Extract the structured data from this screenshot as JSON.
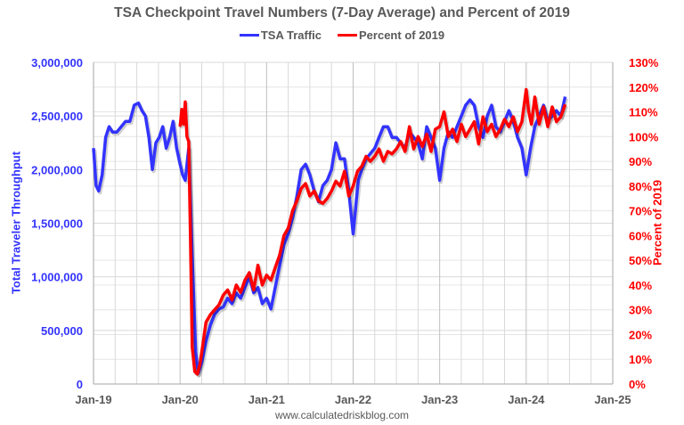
{
  "chart_data": {
    "type": "line",
    "title": "TSA Checkpoint Travel Numbers (7-Day Average) and Percent of 2019",
    "xlabel": "",
    "ylabel": "Total Traveler Throughput",
    "y2label": "Percent of 2019",
    "source": "www.calculatedriskblog.com",
    "x_tick_labels": [
      "Jan-19",
      "Jan-20",
      "Jan-21",
      "Jan-22",
      "Jan-23",
      "Jan-24",
      "Jan-25"
    ],
    "y_tick_labels": [
      "0",
      "500,000",
      "1,000,000",
      "1,500,000",
      "2,000,000",
      "2,500,000",
      "3,000,000"
    ],
    "y2_tick_labels": [
      "0%",
      "10%",
      "20%",
      "30%",
      "40%",
      "50%",
      "60%",
      "70%",
      "80%",
      "90%",
      "100%",
      "110%",
      "120%",
      "130%"
    ],
    "ylim": [
      0,
      3000000
    ],
    "y2lim": [
      0,
      130
    ],
    "xlim": [
      2019.0,
      2025.0
    ],
    "grid": true,
    "legend_position": "top",
    "series": [
      {
        "name": "TSA Traffic",
        "color": "#3333ff",
        "axis": "left",
        "x": [
          2019.0,
          2019.03,
          2019.06,
          2019.1,
          2019.14,
          2019.18,
          2019.22,
          2019.27,
          2019.32,
          2019.37,
          2019.42,
          2019.47,
          2019.52,
          2019.56,
          2019.6,
          2019.64,
          2019.68,
          2019.72,
          2019.76,
          2019.8,
          2019.84,
          2019.88,
          2019.92,
          2019.96,
          2020.0,
          2020.03,
          2020.06,
          2020.1,
          2020.14,
          2020.18,
          2020.21,
          2020.25,
          2020.3,
          2020.35,
          2020.4,
          2020.45,
          2020.5,
          2020.55,
          2020.6,
          2020.65,
          2020.7,
          2020.75,
          2020.8,
          2020.85,
          2020.9,
          2020.95,
          2021.0,
          2021.05,
          2021.1,
          2021.15,
          2021.2,
          2021.25,
          2021.3,
          2021.35,
          2021.4,
          2021.45,
          2021.5,
          2021.55,
          2021.6,
          2021.65,
          2021.7,
          2021.75,
          2021.8,
          2021.85,
          2021.9,
          2021.95,
          2022.0,
          2022.03,
          2022.06,
          2022.1,
          2022.15,
          2022.2,
          2022.25,
          2022.3,
          2022.35,
          2022.4,
          2022.45,
          2022.5,
          2022.55,
          2022.6,
          2022.65,
          2022.7,
          2022.75,
          2022.8,
          2022.85,
          2022.9,
          2022.95,
          2023.0,
          2023.05,
          2023.1,
          2023.15,
          2023.2,
          2023.25,
          2023.3,
          2023.35,
          2023.4,
          2023.45,
          2023.5,
          2023.55,
          2023.6,
          2023.65,
          2023.7,
          2023.75,
          2023.8,
          2023.85,
          2023.9,
          2023.95,
          2024.0,
          2024.05,
          2024.1,
          2024.15,
          2024.2,
          2024.25,
          2024.3,
          2024.35,
          2024.4,
          2024.45
        ],
        "values": [
          2200000,
          1850000,
          1800000,
          1950000,
          2300000,
          2400000,
          2350000,
          2350000,
          2400000,
          2450000,
          2450000,
          2600000,
          2620000,
          2550000,
          2500000,
          2300000,
          2000000,
          2250000,
          2300000,
          2400000,
          2200000,
          2300000,
          2450000,
          2200000,
          2050000,
          1950000,
          1900000,
          2200000,
          1200000,
          300000,
          100000,
          200000,
          400000,
          550000,
          650000,
          700000,
          720000,
          800000,
          750000,
          850000,
          800000,
          900000,
          1000000,
          850000,
          900000,
          750000,
          800000,
          700000,
          900000,
          1100000,
          1300000,
          1400000,
          1550000,
          1750000,
          2000000,
          2050000,
          1950000,
          1800000,
          1700000,
          1850000,
          1900000,
          2000000,
          2250000,
          2100000,
          2100000,
          1800000,
          1400000,
          1650000,
          1900000,
          2000000,
          2100000,
          2150000,
          2200000,
          2300000,
          2400000,
          2400000,
          2300000,
          2300000,
          2250000,
          2200000,
          2350000,
          2300000,
          2250000,
          2100000,
          2400000,
          2300000,
          2200000,
          1900000,
          2200000,
          2350000,
          2300000,
          2400000,
          2500000,
          2600000,
          2650000,
          2600000,
          2400000,
          2300000,
          2500000,
          2600000,
          2400000,
          2350000,
          2450000,
          2550000,
          2450000,
          2300000,
          2200000,
          1950000,
          2200000,
          2400000,
          2500000,
          2600000,
          2450000,
          2500000,
          2550000,
          2500000,
          2680000
        ]
      },
      {
        "name": "Percent of 2019",
        "color": "#ff0000",
        "axis": "right",
        "x": [
          2020.0,
          2020.02,
          2020.04,
          2020.06,
          2020.08,
          2020.1,
          2020.12,
          2020.14,
          2020.17,
          2020.2,
          2020.23,
          2020.26,
          2020.3,
          2020.35,
          2020.4,
          2020.45,
          2020.5,
          2020.55,
          2020.6,
          2020.65,
          2020.7,
          2020.75,
          2020.8,
          2020.85,
          2020.9,
          2020.95,
          2021.0,
          2021.05,
          2021.1,
          2021.15,
          2021.2,
          2021.25,
          2021.3,
          2021.35,
          2021.4,
          2021.45,
          2021.5,
          2021.55,
          2021.6,
          2021.65,
          2021.7,
          2021.75,
          2021.8,
          2021.85,
          2021.9,
          2021.95,
          2022.0,
          2022.05,
          2022.1,
          2022.15,
          2022.2,
          2022.25,
          2022.3,
          2022.35,
          2022.4,
          2022.45,
          2022.5,
          2022.55,
          2022.6,
          2022.65,
          2022.7,
          2022.75,
          2022.8,
          2022.85,
          2022.9,
          2022.95,
          2023.0,
          2023.05,
          2023.1,
          2023.15,
          2023.2,
          2023.25,
          2023.3,
          2023.35,
          2023.4,
          2023.45,
          2023.5,
          2023.55,
          2023.6,
          2023.65,
          2023.7,
          2023.75,
          2023.8,
          2023.85,
          2023.9,
          2023.95,
          2024.0,
          2024.03,
          2024.06,
          2024.1,
          2024.15,
          2024.2,
          2024.25,
          2024.3,
          2024.35,
          2024.4,
          2024.45
        ],
        "values": [
          104,
          111,
          105,
          114,
          100,
          98,
          60,
          15,
          5,
          4,
          8,
          15,
          25,
          28,
          30,
          32,
          36,
          38,
          34,
          40,
          37,
          42,
          45,
          38,
          48,
          40,
          44,
          42,
          47,
          52,
          60,
          63,
          70,
          74,
          79,
          81,
          76,
          78,
          74,
          73,
          75,
          78,
          82,
          80,
          86,
          76,
          80,
          86,
          88,
          92,
          90,
          92,
          95,
          90,
          94,
          93,
          95,
          98,
          94,
          104,
          95,
          100,
          96,
          101,
          94,
          103,
          104,
          110,
          100,
          103,
          98,
          105,
          100,
          103,
          106,
          97,
          108,
          102,
          105,
          100,
          103,
          107,
          104,
          108,
          102,
          106,
          119,
          110,
          105,
          116,
          105,
          112,
          104,
          112,
          106,
          108,
          113
        ]
      }
    ]
  }
}
